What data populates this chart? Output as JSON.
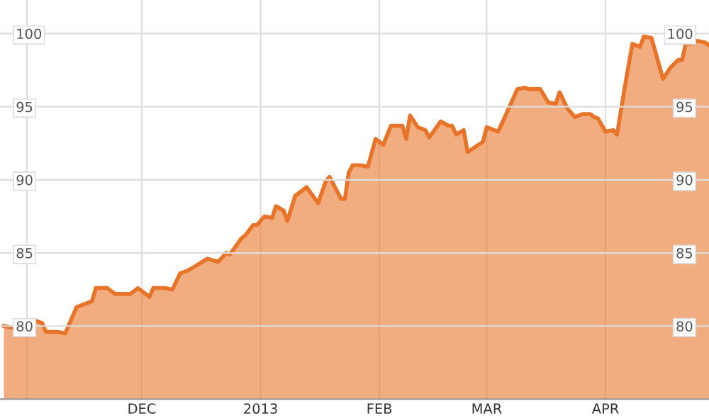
{
  "chart_data": {
    "type": "area",
    "x": [
      "2012-10-26",
      "2012-10-28",
      "2012-11-03",
      "2012-11-05",
      "2012-11-06",
      "2012-11-09",
      "2012-11-11",
      "2012-11-14",
      "2012-11-16",
      "2012-11-18",
      "2012-11-19",
      "2012-11-22",
      "2012-11-24",
      "2012-11-28",
      "2012-11-30",
      "2012-12-03",
      "2012-12-04",
      "2012-12-07",
      "2012-12-09",
      "2012-12-11",
      "2012-12-13",
      "2012-12-15",
      "2012-12-18",
      "2012-12-21",
      "2012-12-23",
      "2012-12-24",
      "2012-12-27",
      "2012-12-28",
      "2012-12-30",
      "2012-12-31",
      "2013-01-02",
      "2013-01-04",
      "2013-01-05",
      "2013-01-07",
      "2013-01-08",
      "2013-01-10",
      "2013-01-13",
      "2013-01-16",
      "2013-01-18",
      "2013-01-19",
      "2013-01-20",
      "2013-01-22",
      "2013-01-23",
      "2013-01-24",
      "2013-01-25",
      "2013-01-27",
      "2013-01-29",
      "2013-01-31",
      "2013-02-02",
      "2013-02-04",
      "2013-02-07",
      "2013-02-08",
      "2013-02-09",
      "2013-02-11",
      "2013-02-13",
      "2013-02-14",
      "2013-02-17",
      "2013-02-19",
      "2013-02-20",
      "2013-02-21",
      "2013-02-23",
      "2013-02-24",
      "2013-02-28",
      "2013-03-01",
      "2013-03-04",
      "2013-03-09",
      "2013-03-11",
      "2013-03-12",
      "2013-03-15",
      "2013-03-17",
      "2013-03-19",
      "2013-03-20",
      "2013-03-22",
      "2013-03-24",
      "2013-03-26",
      "2013-03-28",
      "2013-03-29",
      "2013-03-30",
      "2013-04-01",
      "2013-04-03",
      "2013-04-04",
      "2013-04-06",
      "2013-04-08",
      "2013-04-10",
      "2013-04-11",
      "2013-04-13",
      "2013-04-16",
      "2013-04-18",
      "2013-04-20",
      "2013-04-21",
      "2013-04-22",
      "2013-04-23",
      "2013-04-25",
      "2013-04-27",
      "2013-04-28"
    ],
    "series": [
      {
        "color": "#e8742a",
        "values": [
          80.0,
          79.9,
          80.4,
          80.2,
          79.6,
          79.6,
          79.5,
          81.3,
          81.5,
          81.7,
          82.6,
          82.6,
          82.2,
          82.2,
          82.6,
          82.0,
          82.6,
          82.6,
          82.5,
          83.6,
          83.8,
          84.1,
          84.6,
          84.4,
          85.0,
          84.9,
          86.0,
          86.2,
          86.9,
          86.9,
          87.5,
          87.4,
          88.2,
          87.9,
          87.2,
          88.9,
          89.5,
          88.4,
          89.9,
          90.2,
          89.7,
          88.7,
          88.7,
          90.5,
          91.0,
          91.0,
          90.9,
          92.8,
          92.4,
          93.7,
          93.7,
          92.8,
          94.4,
          93.6,
          93.4,
          92.9,
          94.0,
          93.7,
          93.7,
          93.1,
          93.4,
          91.9,
          92.6,
          93.6,
          93.3,
          96.2,
          96.3,
          96.2,
          96.2,
          95.3,
          95.2,
          96.0,
          94.9,
          94.3,
          94.5,
          94.5,
          94.3,
          94.2,
          93.3,
          93.4,
          93.1,
          96.3,
          99.3,
          99.1,
          99.8,
          99.7,
          96.9,
          97.7,
          98.2,
          98.2,
          99.4,
          99.3,
          99.5,
          99.4,
          99.2
        ]
      }
    ],
    "xlim": [
      "2012-10-25",
      "2013-04-28"
    ],
    "xticks": [
      {
        "value": "2012-11-01",
        "label": null
      },
      {
        "value": "2012-12-01",
        "label": "DEC"
      },
      {
        "value": "2013-01-01",
        "label": "2013"
      },
      {
        "value": "2013-02-01",
        "label": "FEB"
      },
      {
        "value": "2013-03-01",
        "label": "MAR"
      },
      {
        "value": "2013-04-01",
        "label": "APR"
      }
    ],
    "ylim": [
      75,
      102.3
    ],
    "yticks": [
      80,
      85,
      90,
      95,
      100
    ],
    "y2lim": [
      75,
      102.3
    ],
    "y2ticks": [
      80,
      85,
      90,
      95,
      100
    ],
    "grid": true
  }
}
